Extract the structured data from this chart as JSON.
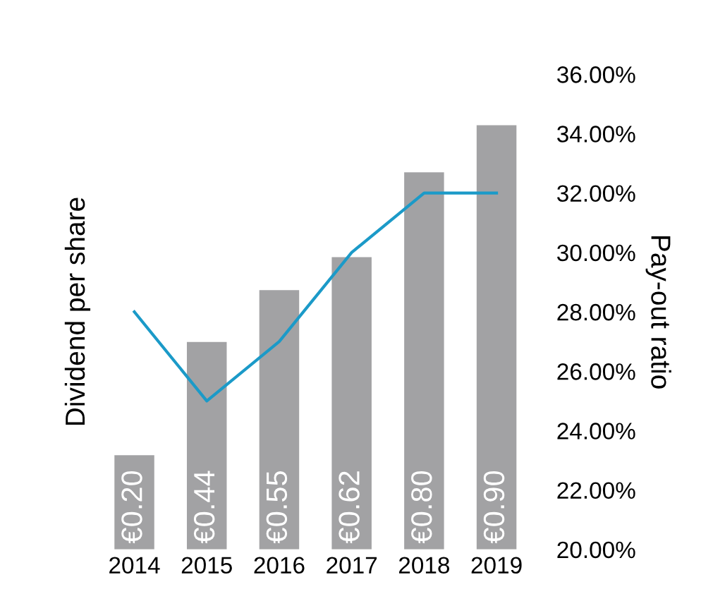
{
  "chart_data": {
    "type": "bar",
    "ylabel": "Dividend per share",
    "y2label": "Pay-out ratio",
    "categories": [
      "2014",
      "2015",
      "2016",
      "2017",
      "2018",
      "2019"
    ],
    "y2lim": [
      20,
      36
    ],
    "y2ticks": [
      {
        "value": 20,
        "label": "20.00%"
      },
      {
        "value": 22,
        "label": "22.00%"
      },
      {
        "value": 24,
        "label": "24.00%"
      },
      {
        "value": 26,
        "label": "26.00%"
      },
      {
        "value": 28,
        "label": "28.00%"
      },
      {
        "value": 30,
        "label": "30.00%"
      },
      {
        "value": 32,
        "label": "32.00%"
      },
      {
        "value": 34,
        "label": "34.00%"
      },
      {
        "value": 36,
        "label": "36.00%"
      }
    ],
    "series": [
      {
        "color": "#a2a2a4",
        "values": [
          0.2,
          0.44,
          0.55,
          0.62,
          0.8,
          0.9
        ],
        "value_labels": [
          "€0.20",
          "€0.44",
          "€0.55",
          "€0.62",
          "€0.80",
          "€0.90"
        ]
      },
      {
        "type": "line",
        "axis": "y2",
        "color": "#1b9ac8",
        "values": [
          28,
          25,
          27,
          30,
          32,
          32
        ]
      }
    ],
    "grid": false,
    "legend": false
  }
}
